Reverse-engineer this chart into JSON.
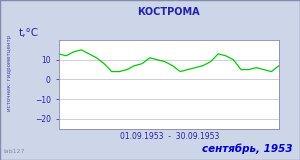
{
  "title": "КОСТРОМА",
  "ylabel": "t,°C",
  "xlabel_date": "01.09.1953  -  30.09.1953",
  "bottom_label": "сентябрь, 1953",
  "source_label": "источник: гидрометцентр",
  "watermark": "lab127",
  "ylim": [
    -25,
    20
  ],
  "yticks": [
    -20,
    -10,
    0,
    10
  ],
  "days": [
    1,
    2,
    3,
    4,
    5,
    6,
    7,
    8,
    9,
    10,
    11,
    12,
    13,
    14,
    15,
    16,
    17,
    18,
    19,
    20,
    21,
    22,
    23,
    24,
    25,
    26,
    27,
    28,
    29,
    30
  ],
  "temps": [
    13,
    12,
    14,
    15,
    13,
    11,
    8,
    4,
    4,
    5,
    7,
    8,
    11,
    10,
    9,
    7,
    4,
    5,
    6,
    7,
    9,
    13,
    12,
    10,
    5,
    5,
    6,
    5,
    4,
    7
  ],
  "line_color": "#00cc00",
  "bg_color": "#cdd5e8",
  "plot_bg": "#ffffff",
  "grid_color": "#aaaacc",
  "title_color": "#2222aa",
  "label_color": "#2222aa",
  "bottom_color": "#0000cc",
  "tick_color": "#2222aa",
  "source_color": "#4444aa",
  "border_color": "#8888aa",
  "watermark_color": "#8888aa"
}
